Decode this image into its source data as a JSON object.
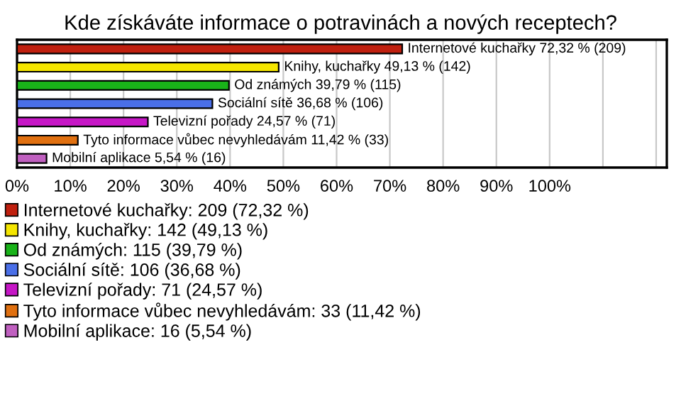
{
  "chart_data": {
    "type": "bar",
    "orientation": "horizontal",
    "title": "Kde získáváte informace o potravinách a nových receptech?",
    "categories": [
      null,
      null,
      null,
      null,
      null,
      null,
      null
    ],
    "series": [
      {
        "name": "Internetové kuchařky: 209 (72,32 %)",
        "color": "#c0200f",
        "values": [
          72.32,
          null,
          null,
          null,
          null,
          null,
          null
        ],
        "value_labels": [
          "Internetové kuchařky 72,32 % (209)",
          null,
          null,
          null,
          null,
          null,
          null
        ]
      },
      {
        "name": "Knihy, kuchařky: 142 (49,13 %)",
        "color": "#f5e600",
        "values": [
          null,
          49.13,
          null,
          null,
          null,
          null,
          null
        ],
        "value_labels": [
          null,
          "Knihy, kuchařky 49,13 % (142)",
          null,
          null,
          null,
          null,
          null
        ]
      },
      {
        "name": "Od známých: 115 (39,79 %)",
        "color": "#19b319",
        "values": [
          null,
          null,
          39.79,
          null,
          null,
          null,
          null
        ],
        "value_labels": [
          null,
          null,
          "Od známých 39,79 % (115)",
          null,
          null,
          null,
          null
        ]
      },
      {
        "name": "Sociální sítě: 106 (36,68 %)",
        "color": "#4a6fe8",
        "values": [
          null,
          null,
          null,
          36.68,
          null,
          null,
          null
        ],
        "value_labels": [
          null,
          null,
          null,
          "Sociální sítě 36,68 % (106)",
          null,
          null,
          null
        ]
      },
      {
        "name": "Televizní pořady: 71 (24,57 %)",
        "color": "#c617c6",
        "values": [
          null,
          null,
          null,
          null,
          24.57,
          null,
          null
        ],
        "value_labels": [
          null,
          null,
          null,
          null,
          "Televizní pořady 24,57 % (71)",
          null,
          null
        ]
      },
      {
        "name": "Tyto informace vůbec nevyhledávám: 33 (11,42 %)",
        "color": "#e07010",
        "values": [
          null,
          null,
          null,
          null,
          null,
          11.42,
          null
        ],
        "value_labels": [
          null,
          null,
          null,
          null,
          null,
          "Tyto informace vůbec nevyhledávám 11,42 % (33)",
          null
        ]
      },
      {
        "name": "Mobilní aplikace: 16 (5,54 %)",
        "color": "#c060c0",
        "values": [
          null,
          null,
          null,
          null,
          null,
          null,
          5.54
        ],
        "value_labels": [
          null,
          null,
          null,
          null,
          null,
          null,
          "Mobilní aplikace 5,54 % (16)"
        ]
      }
    ],
    "xlim": [
      0,
      122
    ],
    "xticks": [
      {
        "value": 0,
        "label": "0%"
      },
      {
        "value": 10,
        "label": "10%"
      },
      {
        "value": 20,
        "label": "20%"
      },
      {
        "value": 30,
        "label": "30%"
      },
      {
        "value": 40,
        "label": "40%"
      },
      {
        "value": 50,
        "label": "50%"
      },
      {
        "value": 60,
        "label": "60%"
      },
      {
        "value": 70,
        "label": "70%"
      },
      {
        "value": 80,
        "label": "80%"
      },
      {
        "value": 90,
        "label": "90%"
      },
      {
        "value": 100,
        "label": "100%"
      },
      {
        "value": 110,
        "label": null
      },
      {
        "value": 120,
        "label": null
      }
    ],
    "grid": "x",
    "legend": "bottom"
  }
}
